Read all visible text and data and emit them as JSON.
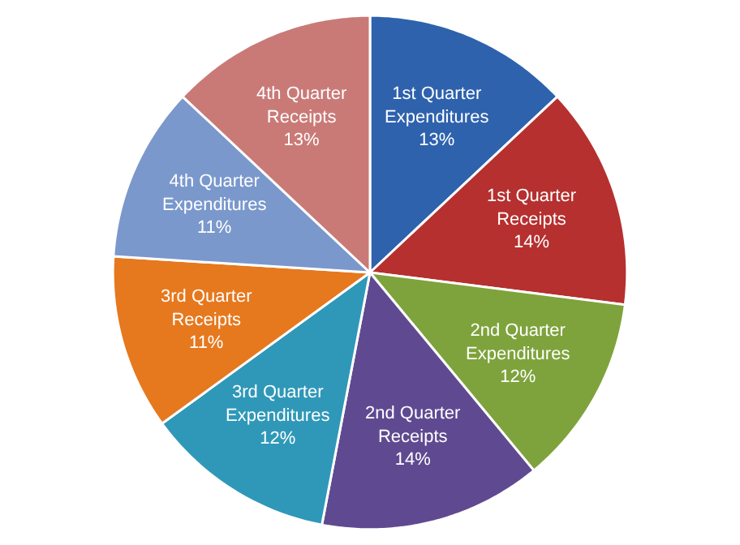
{
  "chart_data": {
    "type": "pie",
    "categories": [
      "1st Quarter Expenditures",
      "1st Quarter Receipts",
      "2nd Quarter Expenditures",
      "2nd Quarter Receipts",
      "3rd Quarter Expenditures",
      "3rd Quarter Receipts",
      "4th Quarter Expenditures",
      "4th Quarter Receipts"
    ],
    "values": [
      13,
      14,
      12,
      14,
      12,
      11,
      11,
      13
    ],
    "colors": [
      "#2e62ad",
      "#b5302f",
      "#7ea33c",
      "#5f4a91",
      "#2f98b8",
      "#e6781e",
      "#7a98cc",
      "#c97a77"
    ],
    "value_labels": [
      "13%",
      "14%",
      "12%",
      "14%",
      "12%",
      "11%",
      "11%",
      "13%"
    ]
  }
}
